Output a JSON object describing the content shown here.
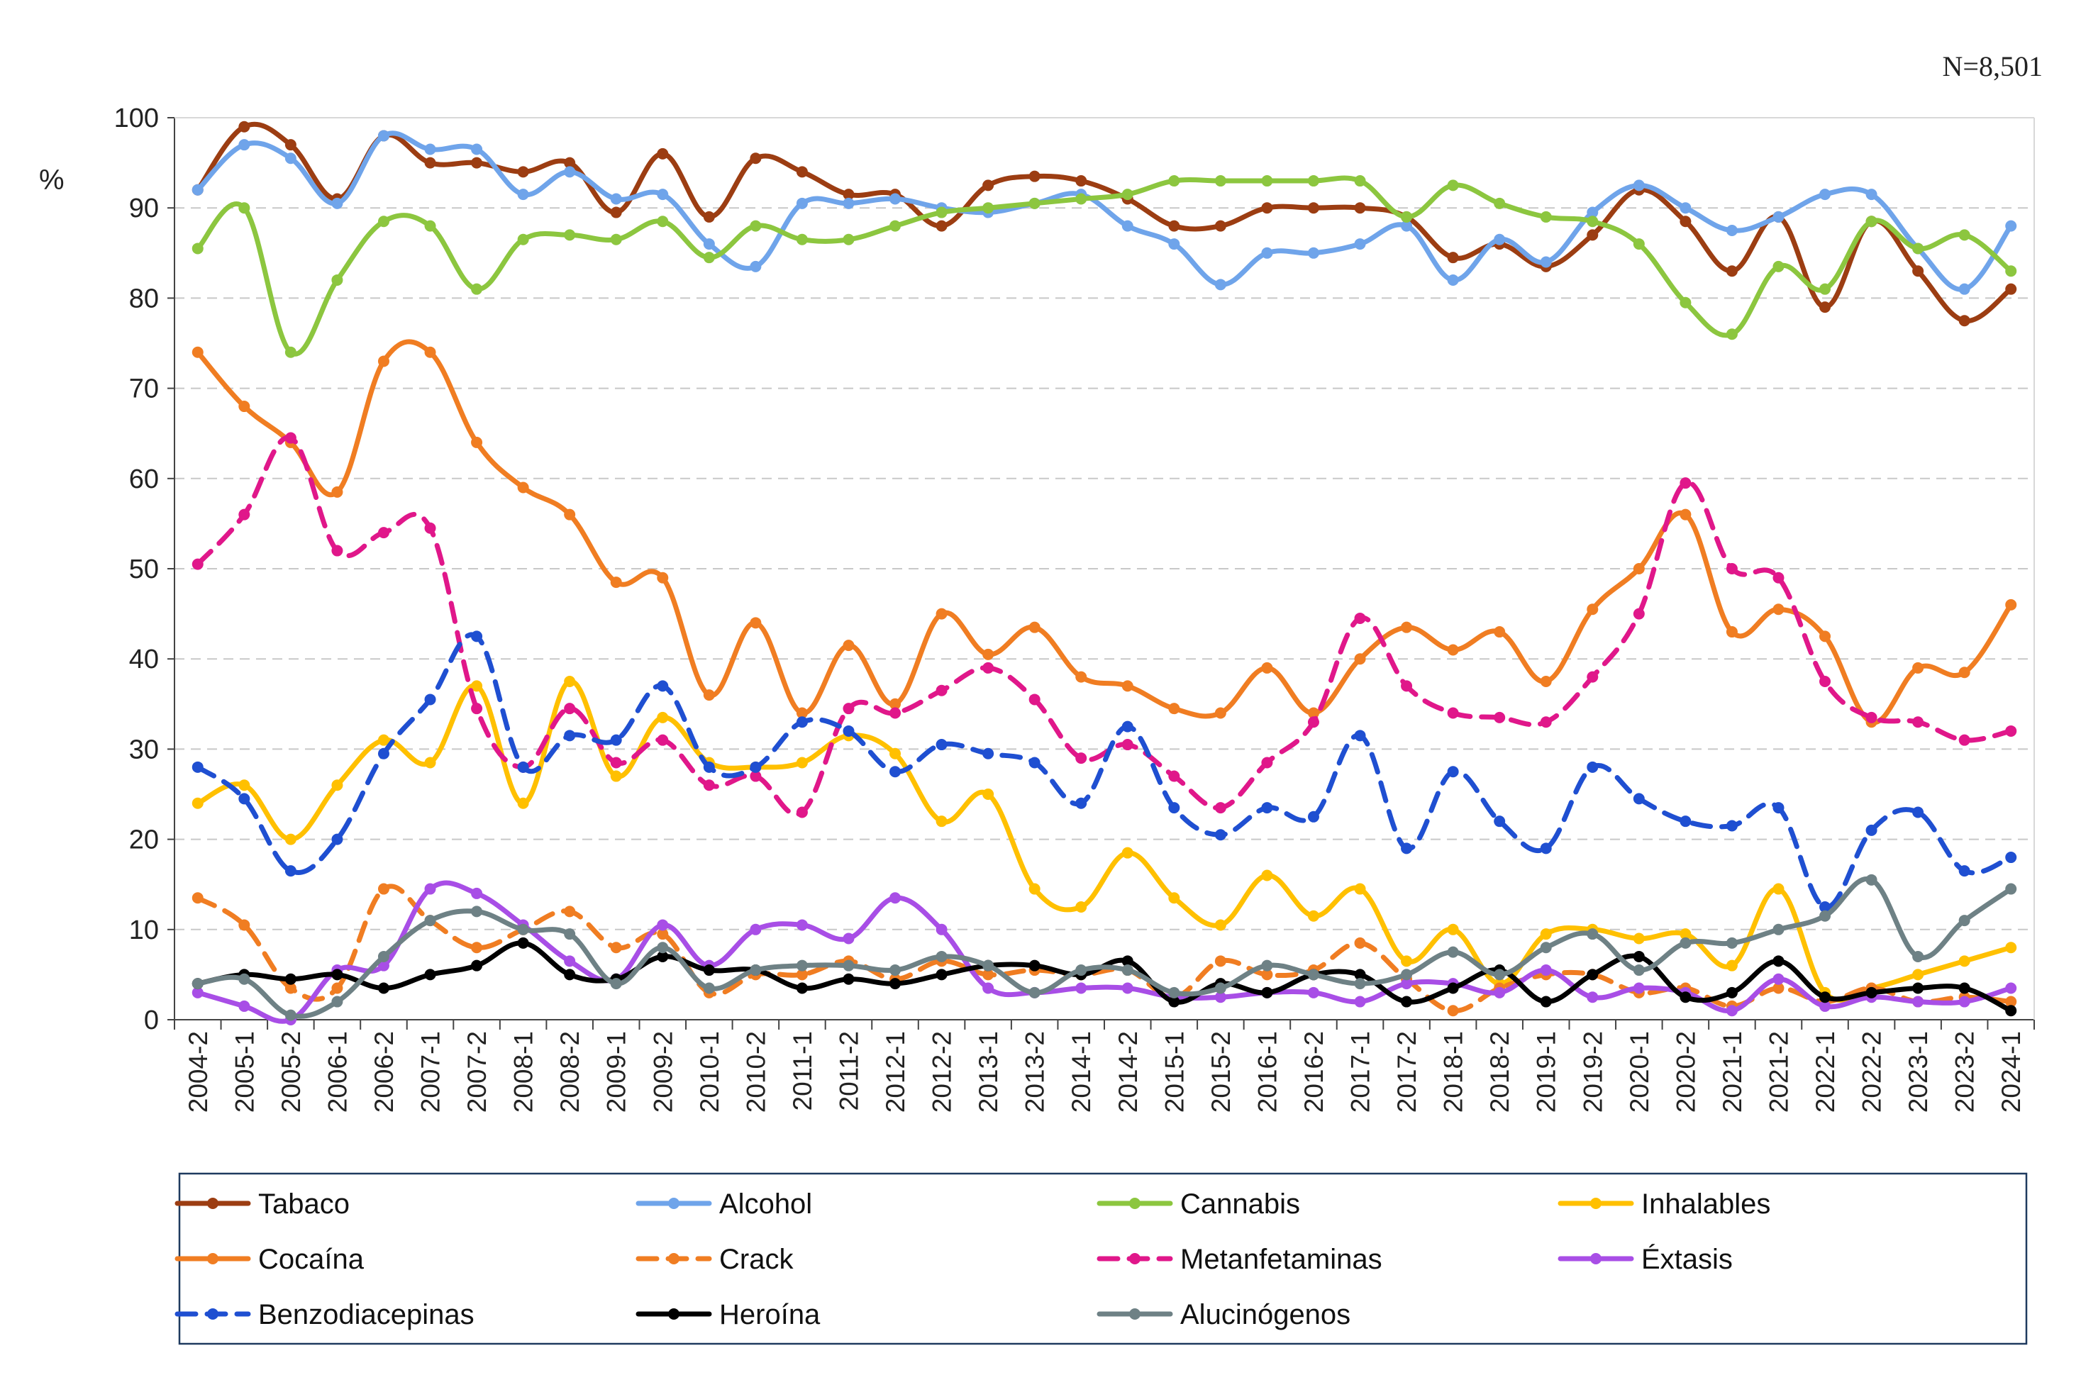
{
  "note": "N=8,501",
  "chart_data": {
    "type": "line",
    "title": "",
    "xlabel": "",
    "ylabel": "%",
    "ylim": [
      0,
      100
    ],
    "yticks": [
      0,
      10,
      20,
      30,
      40,
      50,
      60,
      70,
      80,
      90,
      100
    ],
    "grid": "horizontal dashed",
    "legend": "bottom",
    "categories": [
      "2004-2",
      "2005-1",
      "2005-2",
      "2006-1",
      "2006-2",
      "2007-1",
      "2007-2",
      "2008-1",
      "2008-2",
      "2009-1",
      "2009-2",
      "2010-1",
      "2010-2",
      "2011-1",
      "2011-2",
      "2012-1",
      "2012-2",
      "2013-1",
      "2013-2",
      "2014-1",
      "2014-2",
      "2015-1",
      "2015-2",
      "2016-1",
      "2016-2",
      "2017-1",
      "2017-2",
      "2018-1",
      "2018-2",
      "2019-1",
      "2019-2",
      "2020-1",
      "2020-2",
      "2021-1",
      "2021-2",
      "2022-1",
      "2022-2",
      "2023-1",
      "2023-2",
      "2024-1"
    ],
    "series": [
      {
        "name": "Tabaco",
        "color": "#9c3d12",
        "dash": "solid",
        "values": [
          92,
          99,
          97,
          91,
          98,
          95,
          95,
          94,
          95,
          89.5,
          96,
          89,
          95.5,
          94,
          91.5,
          91.5,
          88,
          92.5,
          93.5,
          93,
          91,
          88,
          88,
          90,
          90,
          90,
          89,
          84.5,
          86,
          83.5,
          87,
          92,
          88.5,
          83,
          89,
          79,
          88.5,
          83,
          77.5,
          81
        ]
      },
      {
        "name": "Alcohol",
        "color": "#6fa4ea",
        "dash": "solid",
        "values": [
          92,
          97,
          95.5,
          90.5,
          98,
          96.5,
          96.5,
          91.5,
          94,
          91,
          91.5,
          86,
          83.5,
          90.5,
          90.5,
          91,
          90,
          89.5,
          90.5,
          91.5,
          88,
          86,
          81.5,
          85,
          85,
          86,
          88,
          82,
          86.5,
          84,
          89.5,
          92.5,
          90,
          87.5,
          89,
          91.5,
          91.5,
          85.5,
          81,
          88
        ]
      },
      {
        "name": "Cannabis",
        "color": "#8cc63f",
        "dash": "solid",
        "values": [
          85.5,
          90,
          74,
          82,
          88.5,
          88,
          81,
          86.5,
          87,
          86.5,
          88.5,
          84.5,
          88,
          86.5,
          86.5,
          88,
          89.5,
          90,
          90.5,
          91,
          91.5,
          93,
          93,
          93,
          93,
          93,
          89,
          92.5,
          90.5,
          89,
          88.5,
          86,
          79.5,
          76,
          83.5,
          81,
          88.5,
          85.5,
          87,
          83
        ]
      },
      {
        "name": "Inhalables",
        "color": "#ffc000",
        "dash": "solid",
        "values": [
          24,
          26,
          20,
          26,
          31,
          28.5,
          37,
          24,
          37.5,
          27,
          33.5,
          28.5,
          28,
          28.5,
          31.5,
          29.5,
          22,
          25,
          14.5,
          12.5,
          18.5,
          13.5,
          10.5,
          16,
          11.5,
          14.5,
          6.5,
          10,
          4,
          9.5,
          10,
          9,
          9.5,
          6,
          14.5,
          3,
          3.5,
          5,
          6.5,
          8
        ]
      },
      {
        "name": "Cocaína",
        "color": "#f07d22",
        "dash": "solid",
        "values": [
          74,
          68,
          64,
          58.5,
          73,
          74,
          64,
          59,
          56,
          48.5,
          49,
          36,
          44,
          34,
          41.5,
          35,
          45,
          40.5,
          43.5,
          38,
          37,
          34.5,
          34,
          39,
          34,
          40,
          43.5,
          41,
          43,
          37.5,
          45.5,
          50,
          56,
          43,
          45.5,
          42.5,
          33,
          39,
          38.5,
          46
        ]
      },
      {
        "name": "Crack",
        "color": "#f07d22",
        "dash": "dash",
        "values": [
          13.5,
          10.5,
          3.5,
          3.5,
          14.5,
          11,
          8,
          10,
          12,
          8,
          9.5,
          3,
          5,
          5,
          6.5,
          4.5,
          6.5,
          5,
          5.5,
          5,
          5.5,
          2.5,
          6.5,
          5,
          5.5,
          8.5,
          4.5,
          1,
          3.5,
          5,
          5,
          3,
          3.5,
          1.5,
          3.5,
          2,
          3.5,
          2,
          2.5,
          2
        ]
      },
      {
        "name": "Metanfetaminas",
        "color": "#e0178a",
        "dash": "dash",
        "values": [
          50.5,
          56,
          64.5,
          52,
          54,
          54.5,
          34.5,
          28,
          34.5,
          28.5,
          31,
          26,
          27,
          23,
          34.5,
          34,
          36.5,
          39,
          35.5,
          29,
          30.5,
          27,
          23.5,
          28.5,
          33,
          44.5,
          37,
          34,
          33.5,
          33,
          38,
          45,
          59.5,
          50,
          49,
          37.5,
          33.5,
          33,
          31,
          32
        ]
      },
      {
        "name": "Éxtasis",
        "color": "#a84ee6",
        "dash": "solid",
        "values": [
          3,
          1.5,
          0,
          5.5,
          6,
          14.5,
          14,
          10.5,
          6.5,
          4.5,
          10.5,
          6,
          10,
          10.5,
          9,
          13.5,
          10,
          3.5,
          3,
          3.5,
          3.5,
          2.5,
          2.5,
          3,
          3,
          2,
          4,
          4,
          3,
          5.5,
          2.5,
          3.5,
          3,
          1,
          4.5,
          1.5,
          2.5,
          2,
          2,
          3.5
        ]
      },
      {
        "name": "Benzodiacepinas",
        "color": "#1f4fd1",
        "dash": "dash",
        "values": [
          28,
          24.5,
          16.5,
          20,
          29.5,
          35.5,
          42.5,
          28,
          31.5,
          31,
          37,
          28,
          28,
          33,
          32,
          27.5,
          30.5,
          29.5,
          28.5,
          24,
          32.5,
          23.5,
          20.5,
          23.5,
          22.5,
          31.5,
          19,
          27.5,
          22,
          19,
          28,
          24.5,
          22,
          21.5,
          23.5,
          12.5,
          21,
          23,
          16.5,
          18
        ]
      },
      {
        "name": "Heroína",
        "color": "#000000",
        "dash": "solid",
        "values": [
          4,
          5,
          4.5,
          5,
          3.5,
          5,
          6,
          8.5,
          5,
          4.5,
          7,
          5.5,
          5.5,
          3.5,
          4.5,
          4,
          5,
          6,
          6,
          5,
          6.5,
          2,
          4,
          3,
          5,
          5,
          2,
          3.5,
          5.5,
          2,
          5,
          7,
          2.5,
          3,
          6.5,
          2.5,
          3,
          3.5,
          3.5,
          1
        ]
      },
      {
        "name": "Alucinógenos",
        "color": "#6e8185",
        "dash": "solid",
        "values": [
          4,
          4.5,
          0.5,
          2,
          7,
          11,
          12,
          10,
          9.5,
          4,
          8,
          3.5,
          5.5,
          6,
          6,
          5.5,
          7,
          6,
          3,
          5.5,
          5.5,
          3,
          3.5,
          6,
          5,
          4,
          5,
          7.5,
          5,
          8,
          9.5,
          5.5,
          8.5,
          8.5,
          10,
          11.5,
          15.5,
          7,
          11,
          14.5
        ]
      }
    ]
  }
}
